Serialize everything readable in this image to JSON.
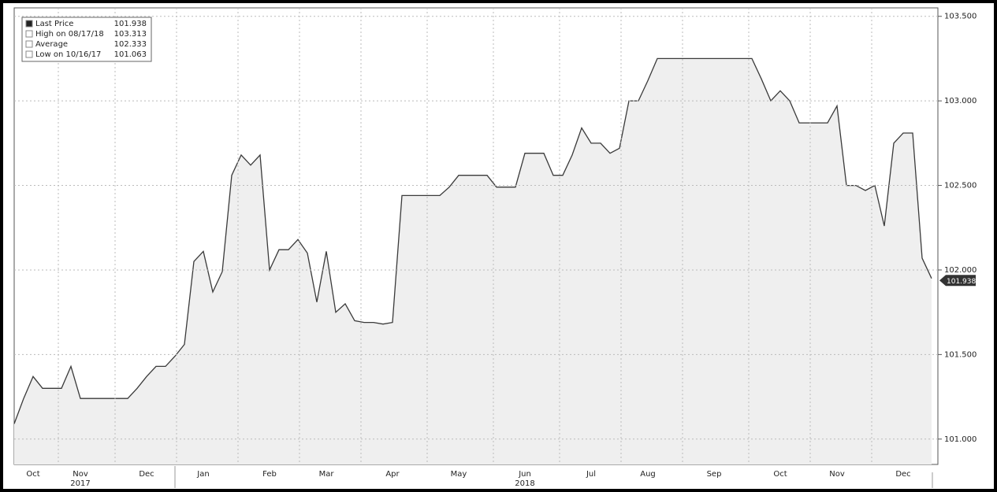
{
  "chart_data": {
    "type": "area",
    "categories": [
      null,
      null,
      "Oct",
      null,
      null,
      null,
      null,
      "Nov",
      null,
      null,
      null,
      null,
      null,
      null,
      "Dec",
      null,
      null,
      null,
      null,
      null,
      "Jan",
      null,
      null,
      null,
      null,
      null,
      null,
      "Feb",
      null,
      null,
      null,
      null,
      null,
      "Mar",
      null,
      null,
      null,
      null,
      null,
      null,
      "Apr",
      null,
      null,
      null,
      null,
      null,
      null,
      "May",
      null,
      null,
      null,
      null,
      null,
      null,
      "Jun",
      null,
      null,
      null,
      null,
      null,
      null,
      "Jul",
      null,
      null,
      null,
      null,
      null,
      "Aug",
      null,
      null,
      null,
      null,
      null,
      null,
      "Sep",
      null,
      null,
      null,
      null,
      null,
      null,
      "Oct",
      null,
      null,
      null,
      null,
      null,
      "Nov",
      null,
      null,
      null,
      null,
      null,
      null,
      "Dec",
      null,
      null,
      null
    ],
    "year_labels": [
      null,
      null,
      null,
      null,
      null,
      null,
      null,
      "2017",
      null,
      null,
      null,
      null,
      null,
      null,
      null,
      null,
      null,
      null,
      null,
      null,
      null,
      null,
      null,
      null,
      null,
      null,
      null,
      null,
      null,
      null,
      null,
      null,
      null,
      null,
      null,
      null,
      null,
      null,
      null,
      null,
      null,
      null,
      null,
      null,
      null,
      null,
      null,
      null,
      null,
      null,
      null,
      null,
      null,
      null,
      "2018",
      null,
      null,
      null,
      null,
      null,
      null,
      null,
      null,
      null,
      null,
      null,
      null,
      null,
      null,
      null,
      null,
      null,
      null,
      null,
      null,
      null,
      null,
      null,
      null,
      null,
      null,
      null,
      null,
      null,
      null,
      null,
      null,
      null,
      null,
      null,
      null,
      null,
      null,
      null,
      null,
      null,
      null,
      null
    ],
    "series": [
      {
        "name": "Last Price",
        "color": "#3a3a3a",
        "fill": "#efefef",
        "values": [
          101.09,
          101.24,
          101.37,
          101.3,
          101.3,
          101.3,
          101.43,
          101.24,
          101.24,
          101.24,
          101.24,
          101.24,
          101.24,
          101.3,
          101.37,
          101.43,
          101.43,
          101.49,
          101.56,
          102.05,
          102.11,
          101.87,
          101.99,
          102.56,
          102.68,
          102.62,
          102.68,
          102.0,
          102.12,
          102.12,
          102.18,
          102.1,
          101.81,
          102.11,
          101.75,
          101.8,
          101.7,
          101.69,
          101.69,
          101.68,
          101.69,
          102.44,
          102.44,
          102.44,
          102.44,
          102.44,
          102.49,
          102.56,
          102.56,
          102.56,
          102.56,
          102.49,
          102.49,
          102.49,
          102.69,
          102.69,
          102.69,
          102.56,
          102.56,
          102.68,
          102.84,
          102.75,
          102.75,
          102.69,
          102.72,
          103.0,
          103.0,
          103.12,
          103.25,
          103.25,
          103.25,
          103.25,
          103.25,
          103.25,
          103.25,
          103.25,
          103.25,
          103.25,
          103.25,
          103.13,
          103.0,
          103.06,
          103.0,
          102.87,
          102.87,
          102.87,
          102.87,
          102.97,
          102.5,
          102.5,
          102.47,
          102.5,
          102.26,
          102.75,
          102.81,
          102.81,
          102.07,
          101.95
        ]
      }
    ],
    "legend": [
      {
        "label": "Last Price",
        "value": 101.938
      },
      {
        "label": "High on 08/17/18",
        "value": 103.313
      },
      {
        "label": "Average",
        "value": 102.333
      },
      {
        "label": "Low on 10/16/17",
        "value": 101.063
      }
    ],
    "ylim": [
      100.85,
      103.55
    ],
    "yticks": [
      {
        "value": 101,
        "label": "101.000"
      },
      {
        "value": 101.5,
        "label": "101.500"
      },
      {
        "value": 102,
        "label": "102.000"
      },
      {
        "value": 102.5,
        "label": "102.500"
      },
      {
        "value": 103,
        "label": "103.000"
      },
      {
        "value": 103.5,
        "label": "103.500"
      }
    ],
    "grid": true
  }
}
